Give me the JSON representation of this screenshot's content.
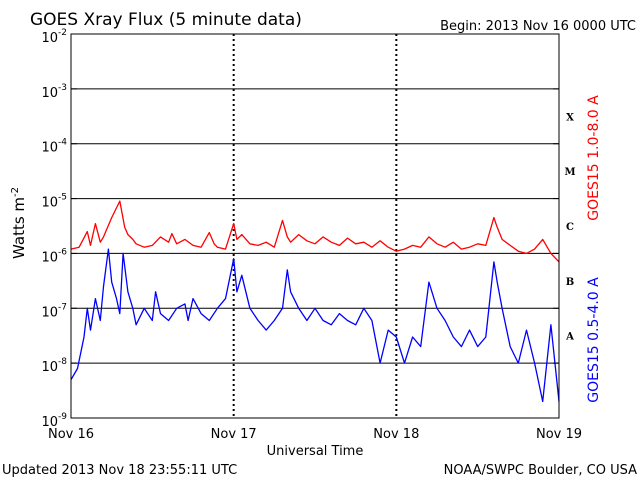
{
  "chart_data": {
    "type": "line",
    "title": "GOES Xray Flux (5 minute data)",
    "begin_label": "Begin:  2013 Nov 16 0000 UTC",
    "xlabel": "Universal Time",
    "ylabel_base": "Watts m",
    "ylabel_exp": "-2",
    "yscale": "log",
    "ylim": [
      1e-09,
      0.01
    ],
    "xlim_days": [
      0,
      3
    ],
    "x_ticks": [
      "Nov 16",
      "Nov 17",
      "Nov 18",
      "Nov 19"
    ],
    "y_ticks": [
      {
        "mant": "10",
        "exp": "-9"
      },
      {
        "mant": "10",
        "exp": "-8"
      },
      {
        "mant": "10",
        "exp": "-7"
      },
      {
        "mant": "10",
        "exp": "-6"
      },
      {
        "mant": "10",
        "exp": "-5"
      },
      {
        "mant": "10",
        "exp": "-4"
      },
      {
        "mant": "10",
        "exp": "-3"
      },
      {
        "mant": "10",
        "exp": "-2"
      }
    ],
    "flare_classes": [
      {
        "label": "X",
        "level": 0.0001
      },
      {
        "label": "M",
        "level": 1e-05
      },
      {
        "label": "C",
        "level": 1e-06
      },
      {
        "label": "B",
        "level": 1e-07
      },
      {
        "label": "A",
        "level": 1e-08
      }
    ],
    "grid": "horizontal decades plus dotted day dividers",
    "series": [
      {
        "name": "GOES15 1.0-8.0 A",
        "color": "#ff0000",
        "x": [
          0.0,
          0.05,
          0.1,
          0.12,
          0.15,
          0.18,
          0.2,
          0.25,
          0.3,
          0.33,
          0.35,
          0.38,
          0.4,
          0.45,
          0.5,
          0.55,
          0.6,
          0.62,
          0.65,
          0.7,
          0.75,
          0.8,
          0.85,
          0.88,
          0.9,
          0.95,
          1.0,
          1.02,
          1.05,
          1.1,
          1.15,
          1.2,
          1.25,
          1.3,
          1.33,
          1.35,
          1.4,
          1.45,
          1.5,
          1.55,
          1.6,
          1.65,
          1.7,
          1.75,
          1.8,
          1.85,
          1.9,
          1.95,
          2.0,
          2.05,
          2.1,
          2.15,
          2.2,
          2.25,
          2.3,
          2.35,
          2.4,
          2.45,
          2.5,
          2.55,
          2.6,
          2.62,
          2.65,
          2.7,
          2.75,
          2.8,
          2.85,
          2.9,
          2.95,
          3.0
        ],
        "y": [
          1.2e-06,
          1.3e-06,
          2.5e-06,
          1.4e-06,
          3.5e-06,
          1.6e-06,
          2e-06,
          4.5e-06,
          9e-06,
          3e-06,
          2.2e-06,
          1.8e-06,
          1.5e-06,
          1.3e-06,
          1.4e-06,
          2e-06,
          1.6e-06,
          2.3e-06,
          1.5e-06,
          1.8e-06,
          1.4e-06,
          1.3e-06,
          2.4e-06,
          1.5e-06,
          1.3e-06,
          1.2e-06,
          3.5e-06,
          1.8e-06,
          2.2e-06,
          1.5e-06,
          1.4e-06,
          1.6e-06,
          1.3e-06,
          4e-06,
          2e-06,
          1.6e-06,
          2.2e-06,
          1.7e-06,
          1.5e-06,
          2e-06,
          1.6e-06,
          1.4e-06,
          1.9e-06,
          1.5e-06,
          1.6e-06,
          1.3e-06,
          1.7e-06,
          1.3e-06,
          1.1e-06,
          1.2e-06,
          1.4e-06,
          1.3e-06,
          2e-06,
          1.5e-06,
          1.3e-06,
          1.6e-06,
          1.2e-06,
          1.3e-06,
          1.5e-06,
          1.4e-06,
          4.5e-06,
          3e-06,
          1.8e-06,
          1.4e-06,
          1.1e-06,
          1e-06,
          1.2e-06,
          1.8e-06,
          1e-06,
          7e-07
        ]
      },
      {
        "name": "GOES15 0.5-4.0 A",
        "color": "#0000ff",
        "x": [
          0.0,
          0.04,
          0.08,
          0.1,
          0.12,
          0.15,
          0.18,
          0.2,
          0.23,
          0.25,
          0.28,
          0.3,
          0.32,
          0.35,
          0.38,
          0.4,
          0.45,
          0.5,
          0.52,
          0.55,
          0.6,
          0.65,
          0.7,
          0.72,
          0.75,
          0.8,
          0.85,
          0.9,
          0.95,
          1.0,
          1.02,
          1.05,
          1.1,
          1.15,
          1.2,
          1.25,
          1.3,
          1.33,
          1.35,
          1.4,
          1.45,
          1.5,
          1.55,
          1.6,
          1.65,
          1.7,
          1.75,
          1.8,
          1.85,
          1.9,
          1.95,
          2.0,
          2.05,
          2.1,
          2.15,
          2.2,
          2.25,
          2.3,
          2.35,
          2.4,
          2.45,
          2.5,
          2.55,
          2.6,
          2.62,
          2.65,
          2.7,
          2.75,
          2.8,
          2.85,
          2.9,
          2.95,
          3.0
        ],
        "y": [
          5e-09,
          8e-09,
          3e-08,
          1e-07,
          4e-08,
          1.5e-07,
          6e-08,
          2.5e-07,
          1.2e-06,
          3e-07,
          1.5e-07,
          8e-08,
          1e-06,
          2e-07,
          1e-07,
          5e-08,
          1e-07,
          6e-08,
          2e-07,
          8e-08,
          6e-08,
          1e-07,
          1.2e-07,
          6e-08,
          1.5e-07,
          8e-08,
          6e-08,
          1e-07,
          1.5e-07,
          8e-07,
          2e-07,
          4e-07,
          1e-07,
          6e-08,
          4e-08,
          6e-08,
          1e-07,
          5e-07,
          2e-07,
          1e-07,
          6e-08,
          1e-07,
          6e-08,
          5e-08,
          8e-08,
          6e-08,
          5e-08,
          1e-07,
          6e-08,
          1e-08,
          4e-08,
          3e-08,
          1e-08,
          3e-08,
          2e-08,
          3e-07,
          1e-07,
          6e-08,
          3e-08,
          2e-08,
          4e-08,
          2e-08,
          3e-08,
          7e-07,
          3e-07,
          1e-07,
          2e-08,
          1e-08,
          4e-08,
          1e-08,
          2e-09,
          5e-08,
          2e-09
        ]
      }
    ]
  },
  "footer": {
    "updated": "Updated 2013 Nov 18 23:55:11 UTC",
    "credit": "NOAA/SWPC Boulder, CO USA"
  }
}
